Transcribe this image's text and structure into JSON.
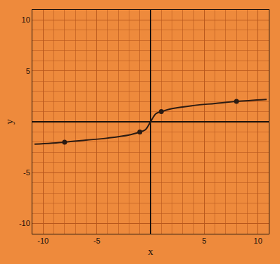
{
  "chart_data": {
    "type": "line",
    "x_label": "x",
    "y_label": "y",
    "xlim": [
      -11,
      11
    ],
    "ylim": [
      -11,
      11
    ],
    "xticks": [
      -10,
      -5,
      5,
      10
    ],
    "yticks": [
      -10,
      -5,
      5,
      10
    ],
    "grid": true,
    "series": [
      {
        "type": "line",
        "color": "#2b1b12",
        "x": [
          -10.8,
          -8,
          -6,
          -4,
          -2,
          -1,
          -0.5,
          0,
          0.5,
          1,
          2,
          4,
          6,
          8,
          10.8
        ],
        "values": [
          -2.2,
          -2,
          -1.8,
          -1.6,
          -1.3,
          -1,
          -0.8,
          0,
          0.8,
          1,
          1.3,
          1.6,
          1.8,
          2,
          2.2
        ]
      },
      {
        "type": "scatter",
        "color": "#2b1b12",
        "marker": "circle",
        "x": [
          -8,
          -1,
          1,
          8
        ],
        "values": [
          -2,
          -1,
          1,
          2
        ]
      }
    ]
  }
}
